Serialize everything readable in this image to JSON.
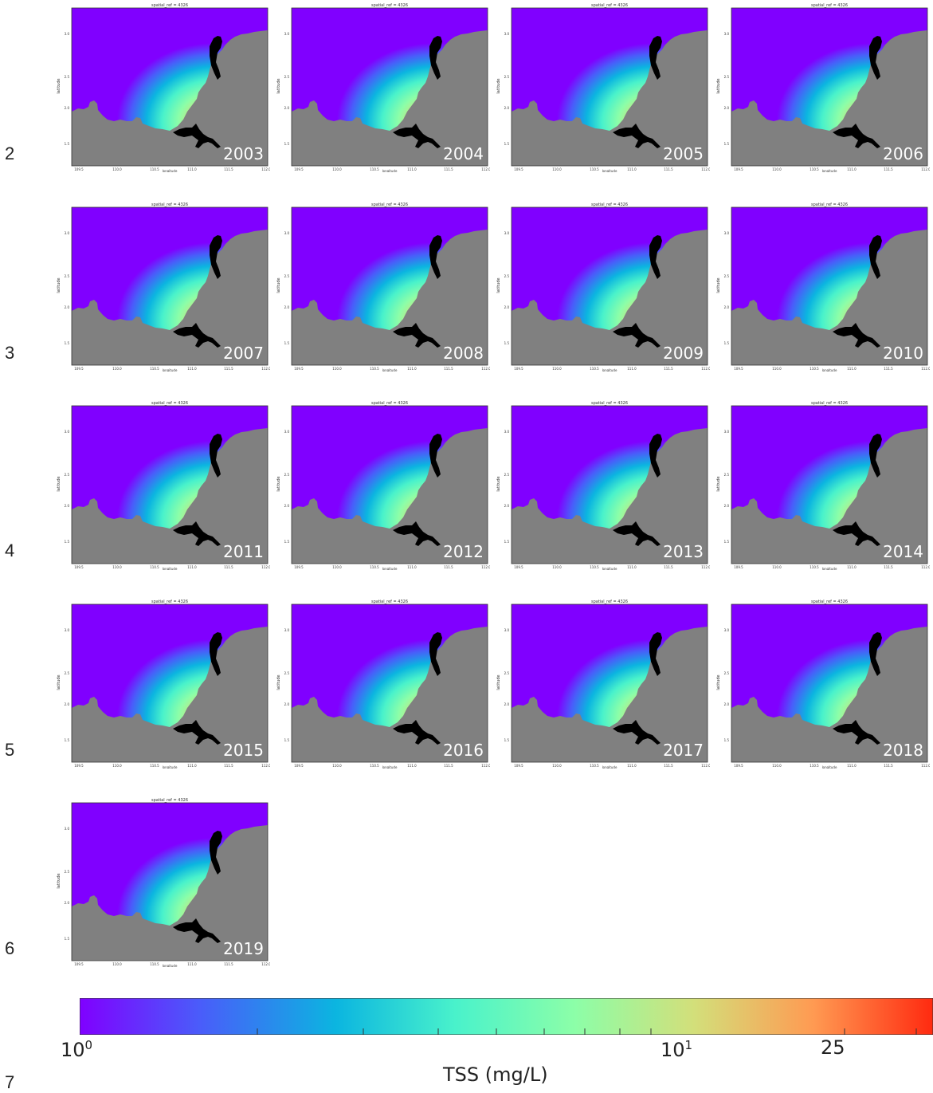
{
  "line_numbers": [
    "2",
    "3",
    "4",
    "5",
    "6",
    "7"
  ],
  "panel_title": "spatial_ref = 4326",
  "x_axis_label": "longitude",
  "y_axis_label": "latitude",
  "x_ticks": [
    "109.5",
    "110.0",
    "110.5",
    "111.0",
    "111.5",
    "112.0"
  ],
  "y_ticks": [
    "3.0",
    "2.5",
    "2.0",
    "1.5"
  ],
  "years": [
    "2003",
    "2004",
    "2005",
    "2006",
    "2007",
    "2008",
    "2009",
    "2010",
    "2011",
    "2012",
    "2013",
    "2014",
    "2015",
    "2016",
    "2017",
    "2018",
    "2019"
  ],
  "colorbar": {
    "label": "TSS (mg/L)",
    "tick_base": "10",
    "tick_exp_0": "0",
    "tick_exp_1": "1",
    "tick_25": "25",
    "scale": "log",
    "range": [
      1,
      30
    ],
    "colors": [
      "#8000ff",
      "#4a5cfa",
      "#0bb5e0",
      "#49f2cb",
      "#8cfea8",
      "#d3df7a",
      "#ff9a52",
      "#ff2a10"
    ]
  },
  "colors": {
    "land": "#808080",
    "river": "#000000",
    "background": "#ffffff"
  }
}
